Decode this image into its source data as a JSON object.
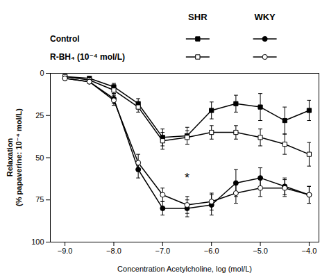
{
  "chart_data": {
    "type": "line",
    "xlabel": "Concentration Acetylcholine, log (mol/L)",
    "ylabel": "Relaxation\n(% papaverine: 10⁻⁴ mol/L)",
    "x": [
      -9,
      -8.5,
      -8,
      -7.5,
      -7,
      -6.5,
      -6,
      -5.5,
      -5,
      -4.5,
      -4
    ],
    "legend_columns": [
      "SHR",
      "WKY"
    ],
    "legend_rows": [
      "Control",
      "R-BH₄ (10⁻⁴ mol/L)"
    ],
    "series": [
      {
        "column": "SHR",
        "row": "Control",
        "color": "#000000",
        "marker": "square-filled",
        "line_style": "solid",
        "values": [
          2,
          3,
          8,
          18,
          38,
          37,
          22,
          18,
          20,
          28,
          22
        ],
        "errors": [
          1,
          1,
          2,
          3,
          5,
          5,
          5,
          5,
          8,
          8,
          6
        ]
      },
      {
        "column": "SHR",
        "row": "R-BH₄ (10⁻⁴ mol/L)",
        "color": "#000000",
        "marker": "square-open",
        "line_style": "solid",
        "values": [
          2,
          4,
          10,
          20,
          40,
          38,
          35,
          35,
          38,
          42,
          48
        ],
        "errors": [
          1,
          1,
          2,
          3,
          5,
          4,
          4,
          4,
          5,
          6,
          7
        ]
      },
      {
        "column": "WKY",
        "row": "Control",
        "color": "#000000",
        "marker": "circle-filled",
        "line_style": "solid",
        "values": [
          3,
          5,
          15,
          57,
          80,
          80,
          78,
          65,
          62,
          67,
          72
        ],
        "errors": [
          1,
          1,
          3,
          5,
          4,
          5,
          6,
          8,
          6,
          5,
          5
        ]
      },
      {
        "column": "WKY",
        "row": "R-BH₄ (10⁻⁴ mol/L)",
        "color": "#000000",
        "marker": "circle-open",
        "line_style": "solid",
        "values": [
          3,
          5,
          16,
          53,
          72,
          78,
          76,
          71,
          68,
          68,
          72
        ],
        "errors": [
          1,
          1,
          3,
          5,
          4,
          5,
          5,
          6,
          5,
          5,
          5
        ]
      }
    ],
    "annotations": [
      {
        "text": "*",
        "x": -6.5,
        "y": 62
      }
    ],
    "xlim": [
      -9.3,
      -3.8
    ],
    "xticks": [
      -9,
      -8,
      -7,
      -6,
      -5,
      -4
    ],
    "ylim": [
      100,
      0
    ],
    "yticks": [
      0,
      25,
      50,
      75,
      100
    ],
    "grid": false
  }
}
